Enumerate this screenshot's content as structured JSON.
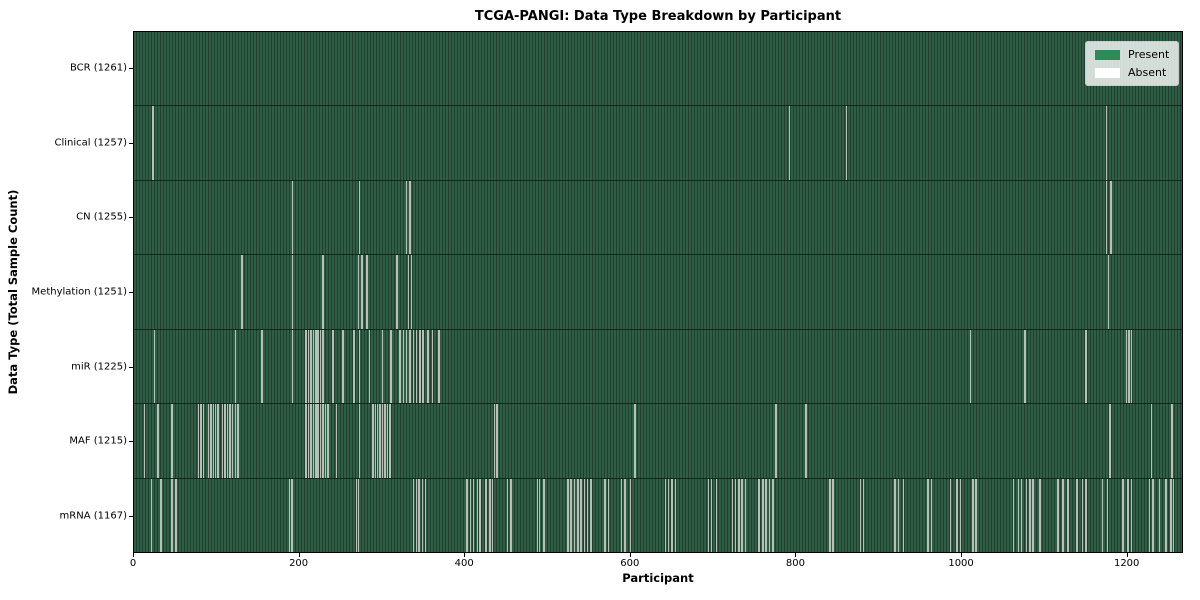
{
  "title": "TCGA-PANGI: Data Type Breakdown by Participant",
  "chart_data": {
    "type": "heatmap",
    "title": "TCGA-PANGI: Data Type Breakdown by Participant",
    "xlabel": "Participant",
    "ylabel": "Data Type (Total Sample Count)",
    "xlim": [
      0,
      1268
    ],
    "x_ticks": [
      0,
      200,
      400,
      600,
      800,
      1000,
      1200
    ],
    "total_participants": 1261,
    "grid": false,
    "legend_position": "upper right",
    "colors": {
      "present": "#2e8b57",
      "absent": "#ffffff",
      "row_stripe_light": "#2e5e45",
      "row_stripe_dark": "#213f2f",
      "absent_gap_line": "#b7bfb7"
    },
    "legend": [
      {
        "label": "Present",
        "color": "#2e8b57"
      },
      {
        "label": "Absent",
        "color": "#ffffff"
      }
    ],
    "rows": [
      {
        "id": "bcr",
        "label": "BCR (1261)",
        "data_type": "BCR",
        "sample_count": 1261,
        "absent_participants": []
      },
      {
        "id": "clinical",
        "label": "Clinical (1257)",
        "data_type": "Clinical",
        "sample_count": 1257,
        "absent_participants": [
          22,
          792,
          861,
          1176
        ]
      },
      {
        "id": "cn",
        "label": "CN (1255)",
        "data_type": "CN",
        "sample_count": 1255,
        "absent_participants": [
          191,
          272,
          329,
          333,
          1176,
          1181
        ]
      },
      {
        "id": "methylation",
        "label": "Methylation (1251)",
        "data_type": "Methylation",
        "sample_count": 1251,
        "absent_participants": [
          130,
          191,
          228,
          271,
          275,
          281,
          317,
          331,
          335,
          1178
        ]
      },
      {
        "id": "mir",
        "label": "miR (1225)",
        "data_type": "miR",
        "sample_count": 1225,
        "absent_participants": [
          24,
          122,
          154,
          191,
          207,
          210,
          213,
          216,
          219,
          222,
          225,
          228,
          240,
          252,
          265,
          272,
          284,
          300,
          310,
          321,
          325,
          329,
          333,
          337,
          341,
          345,
          349,
          355,
          360,
          368,
          1011,
          1077,
          1151,
          1200,
          1203,
          1206
        ]
      },
      {
        "id": "maf",
        "label": "MAF (1215)",
        "data_type": "MAF",
        "sample_count": 1215,
        "absent_participants": [
          12,
          28,
          45,
          77,
          80,
          83,
          89,
          92,
          95,
          98,
          101,
          106,
          109,
          112,
          115,
          118,
          122,
          125,
          207,
          210,
          213,
          216,
          219,
          222,
          225,
          228,
          231,
          234,
          244,
          272,
          288,
          291,
          294,
          297,
          300,
          303,
          306,
          309,
          435,
          438,
          605,
          776,
          812,
          1180,
          1230,
          1255
        ]
      },
      {
        "id": "mrna",
        "label": "mRNA (1167)",
        "data_type": "mRNA",
        "sample_count": 1167,
        "absent_participants": [
          20,
          32,
          45,
          50,
          187,
          190,
          268,
          271,
          337,
          341,
          344,
          348,
          352,
          402,
          406,
          410,
          415,
          418,
          425,
          430,
          433,
          451,
          455,
          487,
          490,
          495,
          524,
          528,
          532,
          536,
          540,
          544,
          548,
          552,
          569,
          573,
          589,
          593,
          600,
          642,
          646,
          650,
          654,
          694,
          698,
          704,
          723,
          727,
          731,
          735,
          739,
          755,
          760,
          764,
          768,
          772,
          841,
          845,
          878,
          882,
          920,
          924,
          930,
          960,
          964,
          987,
          995,
          999,
          1014,
          1018,
          1063,
          1069,
          1073,
          1079,
          1083,
          1087,
          1095,
          1117,
          1123,
          1129,
          1140,
          1147,
          1151,
          1171,
          1177,
          1196,
          1202,
          1206,
          1228,
          1232,
          1240,
          1248,
          1254,
          1257
        ]
      }
    ]
  }
}
